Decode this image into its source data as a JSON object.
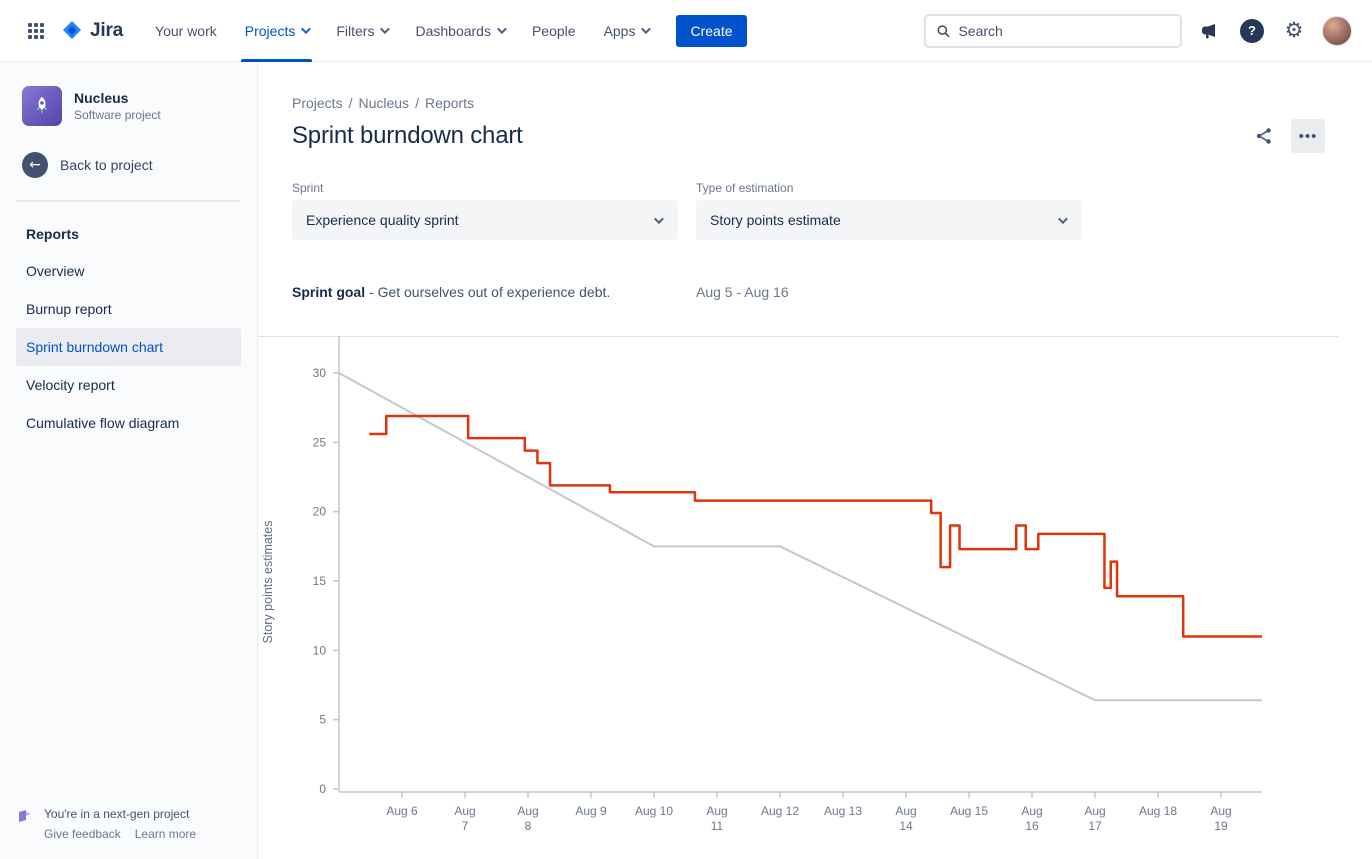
{
  "topnav": {
    "logo_text": "Jira",
    "items": [
      {
        "label": "Your work"
      },
      {
        "label": "Projects"
      },
      {
        "label": "Filters"
      },
      {
        "label": "Dashboards"
      },
      {
        "label": "People"
      },
      {
        "label": "Apps"
      }
    ],
    "create_label": "Create",
    "search_placeholder": "Search"
  },
  "icons": {
    "more": "•••",
    "back_arrow": "←",
    "gear": "⚙",
    "question": "?"
  },
  "sidebar": {
    "project": {
      "name": "Nucleus",
      "type": "Software project"
    },
    "back_label": "Back to project",
    "section_title": "Reports",
    "items": [
      {
        "label": "Overview"
      },
      {
        "label": "Burnup report"
      },
      {
        "label": "Sprint burndown chart"
      },
      {
        "label": "Velocity report"
      },
      {
        "label": "Cumulative flow diagram"
      }
    ],
    "footer": {
      "message": "You're in a next-gen project",
      "link1": "Give feedback",
      "link2": "Learn more"
    }
  },
  "main": {
    "breadcrumb": [
      "Projects",
      "Nucleus",
      "Reports"
    ],
    "title": "Sprint burndown chart",
    "filters": [
      {
        "label": "Sprint",
        "value": "Experience quality sprint"
      },
      {
        "label": "Type of estimation",
        "value": "Story points estimate"
      }
    ],
    "goal_label": "Sprint goal",
    "goal_text": "- Get ourselves out of experience debt.",
    "date_range": "Aug 5 - Aug 16"
  },
  "chart_data": {
    "type": "line",
    "ylabel": "Story points estimates",
    "ylim": [
      0,
      30
    ],
    "y_ticks": [
      0,
      5,
      10,
      15,
      20,
      25,
      30
    ],
    "x_unit": "day of August",
    "x_range_days": [
      5,
      19.65
    ],
    "x_ticks": [
      {
        "day": 6,
        "month": "Aug",
        "num": "6",
        "two_line": false
      },
      {
        "day": 7,
        "month": "Aug",
        "num": "7",
        "two_line": true
      },
      {
        "day": 8,
        "month": "Aug",
        "num": "8",
        "two_line": true
      },
      {
        "day": 9,
        "month": "Aug",
        "num": "9",
        "two_line": false
      },
      {
        "day": 10,
        "month": "Aug",
        "num": "10",
        "two_line": false
      },
      {
        "day": 11,
        "month": "Aug",
        "num": "11",
        "two_line": true
      },
      {
        "day": 12,
        "month": "Aug",
        "num": "12",
        "two_line": false
      },
      {
        "day": 13,
        "month": "Aug",
        "num": "13",
        "two_line": false
      },
      {
        "day": 14,
        "month": "Aug",
        "num": "14",
        "two_line": true
      },
      {
        "day": 15,
        "month": "Aug",
        "num": "15",
        "two_line": false
      },
      {
        "day": 16,
        "month": "Aug",
        "num": "16",
        "two_line": true
      },
      {
        "day": 17,
        "month": "Aug",
        "num": "17",
        "two_line": true
      },
      {
        "day": 18,
        "month": "Aug",
        "num": "18",
        "two_line": false
      },
      {
        "day": 19,
        "month": "Aug",
        "num": "19",
        "two_line": true
      }
    ],
    "series": [
      {
        "name": "Guideline",
        "color": "#C1C7D0",
        "style": "linear",
        "points": [
          [
            5,
            30
          ],
          [
            10,
            17.5
          ],
          [
            12,
            17.5
          ],
          [
            17,
            6.4
          ],
          [
            19.65,
            6.4
          ]
        ]
      },
      {
        "name": "Remaining values",
        "color": "#DE350B",
        "style": "step",
        "points": [
          [
            5.48,
            25.6
          ],
          [
            5.75,
            26.9
          ],
          [
            7.05,
            25.3
          ],
          [
            7.95,
            24.4
          ],
          [
            8.15,
            23.5
          ],
          [
            8.35,
            21.9
          ],
          [
            9.3,
            21.4
          ],
          [
            10.65,
            20.8
          ],
          [
            14.4,
            19.9
          ],
          [
            14.55,
            16.0
          ],
          [
            14.7,
            19.0
          ],
          [
            14.85,
            17.3
          ],
          [
            15.75,
            19.0
          ],
          [
            15.9,
            17.3
          ],
          [
            16.1,
            18.4
          ],
          [
            17.15,
            14.5
          ],
          [
            17.25,
            16.4
          ],
          [
            17.35,
            13.9
          ],
          [
            18.4,
            11.0
          ],
          [
            19.65,
            11.0
          ]
        ]
      }
    ],
    "colors": {
      "axis": "#C1C7D0",
      "border": "#DFE1E6",
      "tick_text": "#6B778C",
      "ylabel_text": "#5E6C84"
    }
  }
}
